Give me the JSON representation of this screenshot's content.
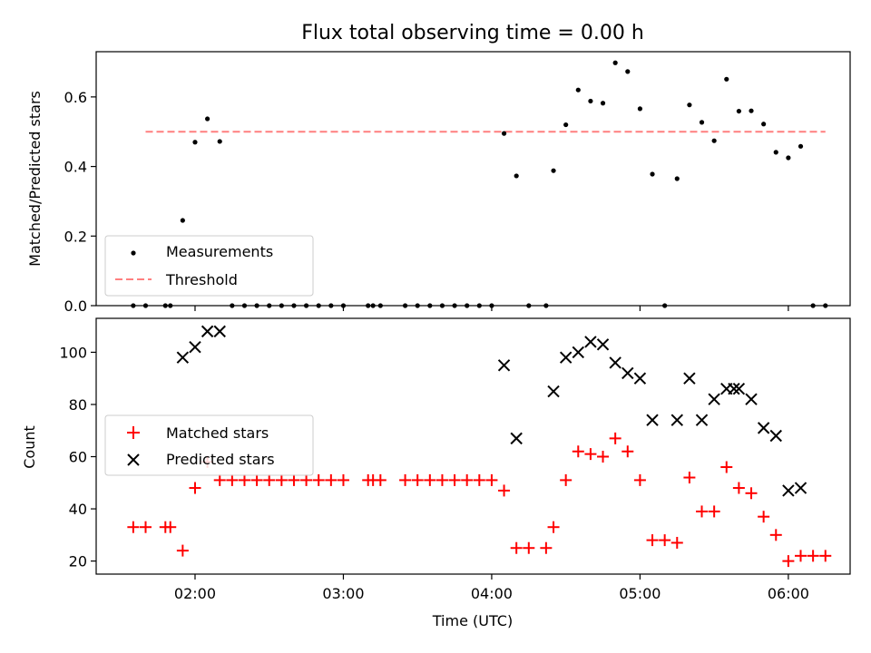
{
  "chart_data": [
    {
      "type": "scatter",
      "title": "Flux total observing time = 0.00 h",
      "xlabel": "",
      "ylabel": "Matched/Predicted stars",
      "ylim": [
        0,
        0.73
      ],
      "yticks": [
        "0.0",
        "0.2",
        "0.4",
        "0.6"
      ],
      "legend": "lower-left",
      "series": [
        {
          "name": "Measurements",
          "kind": "points",
          "color": "#000000",
          "points": [
            [
              "01:35",
              0
            ],
            [
              "01:40",
              0
            ],
            [
              "01:48",
              0
            ],
            [
              "01:50",
              0
            ],
            [
              "01:55",
              0.245
            ],
            [
              "02:00",
              0.47
            ],
            [
              "02:05",
              0.537
            ],
            [
              "02:10",
              0.472
            ],
            [
              "02:15",
              0
            ],
            [
              "02:20",
              0
            ],
            [
              "02:25",
              0
            ],
            [
              "02:30",
              0
            ],
            [
              "02:35",
              0
            ],
            [
              "02:40",
              0
            ],
            [
              "02:45",
              0
            ],
            [
              "02:50",
              0
            ],
            [
              "02:55",
              0
            ],
            [
              "03:00",
              0
            ],
            [
              "03:10",
              0
            ],
            [
              "03:12",
              0
            ],
            [
              "03:15",
              0
            ],
            [
              "03:25",
              0
            ],
            [
              "03:30",
              0
            ],
            [
              "03:35",
              0
            ],
            [
              "03:40",
              0
            ],
            [
              "03:45",
              0
            ],
            [
              "03:50",
              0
            ],
            [
              "03:55",
              0
            ],
            [
              "04:00",
              0
            ],
            [
              "04:05",
              0.495
            ],
            [
              "04:10",
              0.373
            ],
            [
              "04:15",
              0
            ],
            [
              "04:22",
              0
            ],
            [
              "04:25",
              0.388
            ],
            [
              "04:30",
              0.52
            ],
            [
              "04:35",
              0.62
            ],
            [
              "04:40",
              0.588
            ],
            [
              "04:45",
              0.582
            ],
            [
              "04:50",
              0.698
            ],
            [
              "04:55",
              0.673
            ],
            [
              "05:00",
              0.566
            ],
            [
              "05:05",
              0.378
            ],
            [
              "05:10",
              0
            ],
            [
              "05:15",
              0.365
            ],
            [
              "05:20",
              0.577
            ],
            [
              "05:25",
              0.527
            ],
            [
              "05:30",
              0.474
            ],
            [
              "05:35",
              0.651
            ],
            [
              "05:40",
              0.559
            ],
            [
              "05:45",
              0.56
            ],
            [
              "05:50",
              0.522
            ],
            [
              "05:55",
              0.441
            ],
            [
              "06:00",
              0.425
            ],
            [
              "06:05",
              0.458
            ],
            [
              "06:10",
              0
            ],
            [
              "06:15",
              0
            ]
          ]
        },
        {
          "name": "Threshold",
          "kind": "dashed-line",
          "color": "#ff7f7f",
          "points": [
            [
              "01:40",
              0.5
            ],
            [
              "06:15",
              0.5
            ]
          ]
        }
      ]
    },
    {
      "type": "scatter",
      "title": "",
      "xlabel": "Time (UTC)",
      "ylabel": "Count",
      "ylim": [
        15,
        113
      ],
      "yticks": [
        "20",
        "40",
        "60",
        "80",
        "100"
      ],
      "xticks": [
        "02:00",
        "03:00",
        "04:00",
        "05:00",
        "06:00"
      ],
      "legend": "center-left",
      "series": [
        {
          "name": "Matched stars",
          "marker": "+",
          "color": "#ff0000",
          "points": [
            [
              "01:35",
              33
            ],
            [
              "01:40",
              33
            ],
            [
              "01:48",
              33
            ],
            [
              "01:50",
              33
            ],
            [
              "01:55",
              24
            ],
            [
              "02:00",
              48
            ],
            [
              "02:05",
              58
            ],
            [
              "02:10",
              51
            ],
            [
              "02:15",
              51
            ],
            [
              "02:20",
              51
            ],
            [
              "02:25",
              51
            ],
            [
              "02:30",
              51
            ],
            [
              "02:35",
              51
            ],
            [
              "02:40",
              51
            ],
            [
              "02:45",
              51
            ],
            [
              "02:50",
              51
            ],
            [
              "02:55",
              51
            ],
            [
              "03:00",
              51
            ],
            [
              "03:10",
              51
            ],
            [
              "03:12",
              51
            ],
            [
              "03:15",
              51
            ],
            [
              "03:25",
              51
            ],
            [
              "03:30",
              51
            ],
            [
              "03:35",
              51
            ],
            [
              "03:40",
              51
            ],
            [
              "03:45",
              51
            ],
            [
              "03:50",
              51
            ],
            [
              "03:55",
              51
            ],
            [
              "04:00",
              51
            ],
            [
              "04:05",
              47
            ],
            [
              "04:10",
              25
            ],
            [
              "04:15",
              25
            ],
            [
              "04:22",
              25
            ],
            [
              "04:25",
              33
            ],
            [
              "04:30",
              51
            ],
            [
              "04:35",
              62
            ],
            [
              "04:40",
              61
            ],
            [
              "04:45",
              60
            ],
            [
              "04:50",
              67
            ],
            [
              "04:55",
              62
            ],
            [
              "05:00",
              51
            ],
            [
              "05:05",
              28
            ],
            [
              "05:10",
              28
            ],
            [
              "05:15",
              27
            ],
            [
              "05:20",
              52
            ],
            [
              "05:25",
              39
            ],
            [
              "05:30",
              39
            ],
            [
              "05:35",
              56
            ],
            [
              "05:40",
              48
            ],
            [
              "05:45",
              46
            ],
            [
              "05:50",
              37
            ],
            [
              "05:55",
              30
            ],
            [
              "06:00",
              20
            ],
            [
              "06:05",
              22
            ],
            [
              "06:10",
              22
            ],
            [
              "06:15",
              22
            ]
          ]
        },
        {
          "name": "Predicted stars",
          "marker": "x",
          "color": "#000000",
          "points": [
            [
              "01:55",
              98
            ],
            [
              "02:00",
              102
            ],
            [
              "02:05",
              108
            ],
            [
              "02:10",
              108
            ],
            [
              "04:05",
              95
            ],
            [
              "04:10",
              67
            ],
            [
              "04:25",
              85
            ],
            [
              "04:30",
              98
            ],
            [
              "04:35",
              100
            ],
            [
              "04:40",
              104
            ],
            [
              "04:45",
              103
            ],
            [
              "04:50",
              96
            ],
            [
              "04:55",
              92
            ],
            [
              "05:00",
              90
            ],
            [
              "05:05",
              74
            ],
            [
              "05:15",
              74
            ],
            [
              "05:20",
              90
            ],
            [
              "05:25",
              74
            ],
            [
              "05:30",
              82
            ],
            [
              "05:35",
              86
            ],
            [
              "05:38",
              86
            ],
            [
              "05:40",
              86
            ],
            [
              "05:45",
              82
            ],
            [
              "05:50",
              71
            ],
            [
              "05:55",
              68
            ],
            [
              "06:00",
              47
            ],
            [
              "06:05",
              48
            ]
          ]
        }
      ]
    }
  ]
}
